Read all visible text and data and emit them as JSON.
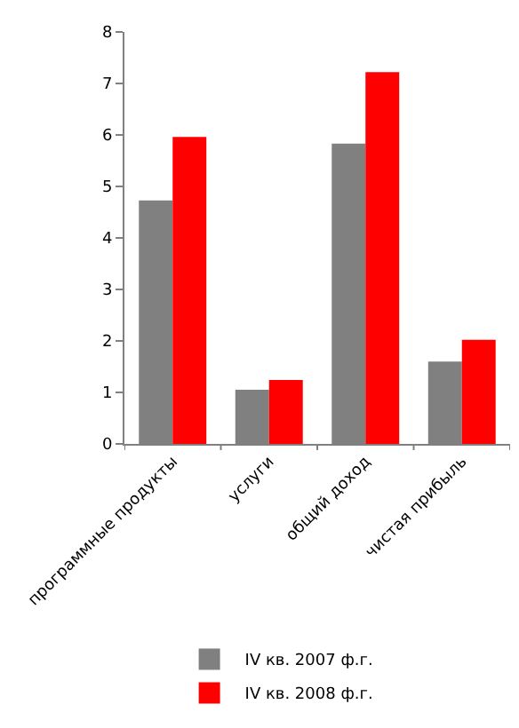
{
  "chart_data": {
    "type": "bar",
    "categories": [
      "программные продукты",
      "услуги",
      "общий доход",
      "чистая прибыль"
    ],
    "series": [
      {
        "name": "IV кв. 2007 ф.г.",
        "color": "#808080",
        "values": [
          4.73,
          1.05,
          5.83,
          1.6
        ]
      },
      {
        "name": "IV кв. 2008 ф.г.",
        "color": "#ff0000",
        "values": [
          5.96,
          1.24,
          7.22,
          2.02
        ]
      }
    ],
    "ylim": [
      0,
      8
    ],
    "yticks": [
      0,
      1,
      2,
      3,
      4,
      5,
      6,
      7,
      8
    ],
    "grid": false,
    "legend": "bottom"
  }
}
